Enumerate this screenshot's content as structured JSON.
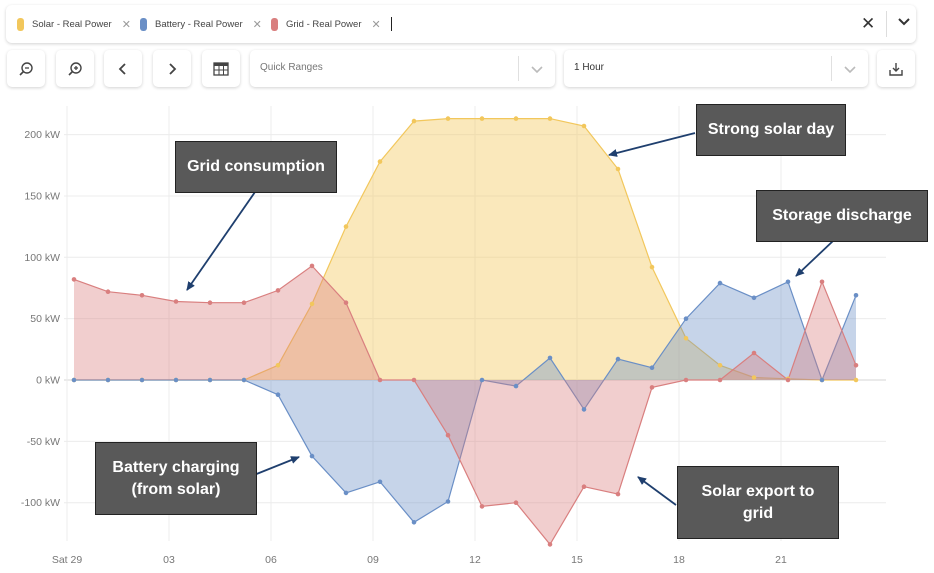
{
  "filters": [
    {
      "label": "Solar - Real Power",
      "color": "#f2c75c"
    },
    {
      "label": "Battery - Real Power",
      "color": "#6a8fc6"
    },
    {
      "label": "Grid - Real Power",
      "color": "#d97f7f"
    }
  ],
  "toolbar": {
    "quick_ranges_label": "Quick Ranges",
    "interval_label": "1 Hour"
  },
  "icons": {
    "zoom_out": "zoom-out-icon",
    "zoom_in": "zoom-in-icon",
    "prev": "chevron-left-icon",
    "next": "chevron-right-icon",
    "table": "table-icon",
    "download": "download-icon",
    "remove": "close-icon",
    "clear": "close-icon",
    "expand": "chevron-down-icon"
  },
  "chart_data": {
    "type": "area",
    "unit": "kW",
    "x_ticks": [
      "Sat 29",
      "03",
      "06",
      "09",
      "12",
      "15",
      "18",
      "21"
    ],
    "y_ticks": [
      "200 kW",
      "150 kW",
      "100 kW",
      "50 kW",
      "0 kW",
      "-50 kW",
      "-100 kW"
    ],
    "ylim": [
      -137,
      224
    ],
    "x_hours": [
      0,
      1,
      2,
      3,
      4,
      5,
      6,
      7,
      8,
      9,
      10,
      11,
      12,
      13,
      14,
      15,
      16,
      17,
      18,
      19,
      20,
      21,
      22,
      23
    ],
    "series": [
      {
        "name": "Solar - Real Power",
        "color": "#f2c75c",
        "values": [
          0,
          0,
          0,
          0,
          0,
          0,
          12,
          62,
          125,
          178,
          211,
          213,
          213,
          213,
          213,
          207,
          172,
          92,
          34,
          12,
          2,
          1,
          0,
          0
        ]
      },
      {
        "name": "Battery - Real Power",
        "color": "#6a8fc6",
        "values": [
          0,
          0,
          0,
          0,
          0,
          0,
          -12,
          -62,
          -92,
          -83,
          -116,
          -99,
          0,
          -5,
          18,
          -24,
          17,
          10,
          50,
          79,
          67,
          80,
          0,
          69
        ]
      },
      {
        "name": "Grid - Real Power",
        "color": "#d97f7f",
        "values": [
          82,
          72,
          69,
          64,
          63,
          63,
          73,
          93,
          63,
          0,
          0,
          -45,
          -103,
          -100,
          -134,
          -87,
          -93,
          -6,
          0,
          0,
          22,
          0,
          80,
          12
        ]
      }
    ],
    "annotations": [
      {
        "text": "Grid consumption"
      },
      {
        "text": "Strong solar day"
      },
      {
        "text": "Storage discharge"
      },
      {
        "text": "Battery charging\n(from solar)"
      },
      {
        "text": "Solar export to\ngrid"
      }
    ],
    "grid": true
  }
}
